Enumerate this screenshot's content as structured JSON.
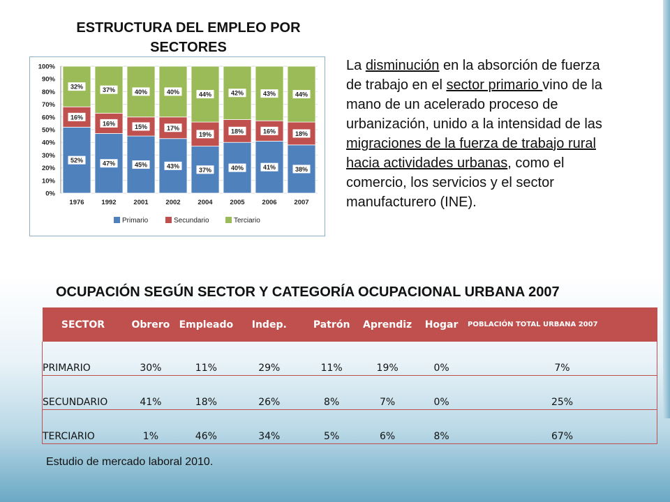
{
  "chart_data": {
    "type": "bar",
    "stacked": true,
    "title": "ESTRUCTURA DEL EMPLEO POR SECTORES",
    "categories": [
      "1976",
      "1992",
      "2001",
      "2002",
      "2004",
      "2005",
      "2006",
      "2007"
    ],
    "series": [
      {
        "name": "Primario",
        "color": "#4f81bd",
        "values": [
          52,
          47,
          45,
          43,
          37,
          40,
          41,
          38
        ],
        "labels": [
          "52%",
          "47%",
          "45%",
          "43%",
          "37%",
          "40%",
          "41%",
          "38%"
        ]
      },
      {
        "name": "Secundario",
        "color": "#c0504d",
        "values": [
          16,
          16,
          15,
          17,
          19,
          18,
          16,
          18
        ],
        "labels": [
          "16%",
          "16%",
          "15%",
          "17%",
          "19%",
          "18%",
          "16%",
          "18%"
        ]
      },
      {
        "name": "Terciario",
        "color": "#9bbb59",
        "values": [
          32,
          37,
          40,
          40,
          44,
          42,
          43,
          44
        ],
        "labels": [
          "32%",
          "37%",
          "40%",
          "40%",
          "44%",
          "42%",
          "43%",
          "44%"
        ]
      }
    ],
    "yticks": [
      "0%",
      "10%",
      "20%",
      "30%",
      "40%",
      "50%",
      "60%",
      "70%",
      "80%",
      "90%",
      "100%"
    ],
    "ylim": [
      0,
      100
    ],
    "legend_position": "bottom"
  },
  "description": {
    "t1": "La ",
    "u1": "disminución",
    "t2": " en la absorción de fuerza de trabajo en el ",
    "u2": "sector primario ",
    "t3": "vino de la mano de un acelerado proceso de urbanización, unido a la intensidad de las ",
    "u3": "migraciones de la fuerza de trabajo rural hacia actividades urbanas",
    "t4": ", como el comercio, los servicios y el sector manufacturero (INE)."
  },
  "table": {
    "title": "OCUPACIÓN SEGÚN SECTOR Y CATEGORÍA OCUPACIONAL URBANA 2007",
    "headers": [
      "SECTOR",
      "Obrero",
      "Empleado",
      "Indep.",
      "Patrón",
      "Aprendiz",
      "Hogar",
      "POBLACIÓN TOTAL URBANA 2007"
    ],
    "rows": [
      [
        "PRIMARIO",
        "30%",
        "11%",
        "29%",
        "11%",
        "19%",
        "0%",
        "7%"
      ],
      [
        "SECUNDARIO",
        "41%",
        "18%",
        "26%",
        "8%",
        "7%",
        "0%",
        "25%"
      ],
      [
        "TERCIARIO",
        "1%",
        "46%",
        "34%",
        "5%",
        "6%",
        "8%",
        "67%"
      ]
    ]
  },
  "source": "Estudio de mercado laboral 2010."
}
